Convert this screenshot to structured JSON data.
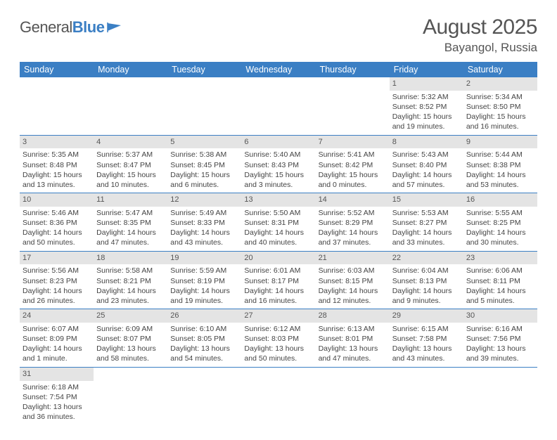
{
  "logo": {
    "general": "General",
    "blue": "Blue"
  },
  "header": {
    "month": "August 2025",
    "location": "Bayangol, Russia"
  },
  "weekdays": [
    "Sunday",
    "Monday",
    "Tuesday",
    "Wednesday",
    "Thursday",
    "Friday",
    "Saturday"
  ],
  "colors": {
    "accent": "#3b7fc4",
    "daynum_bg": "#e4e4e4",
    "text": "#444"
  },
  "first_weekday_index": 5,
  "days": [
    {
      "n": 1,
      "sunrise": "5:32 AM",
      "sunset": "8:52 PM",
      "daylight": "15 hours and 19 minutes."
    },
    {
      "n": 2,
      "sunrise": "5:34 AM",
      "sunset": "8:50 PM",
      "daylight": "15 hours and 16 minutes."
    },
    {
      "n": 3,
      "sunrise": "5:35 AM",
      "sunset": "8:48 PM",
      "daylight": "15 hours and 13 minutes."
    },
    {
      "n": 4,
      "sunrise": "5:37 AM",
      "sunset": "8:47 PM",
      "daylight": "15 hours and 10 minutes."
    },
    {
      "n": 5,
      "sunrise": "5:38 AM",
      "sunset": "8:45 PM",
      "daylight": "15 hours and 6 minutes."
    },
    {
      "n": 6,
      "sunrise": "5:40 AM",
      "sunset": "8:43 PM",
      "daylight": "15 hours and 3 minutes."
    },
    {
      "n": 7,
      "sunrise": "5:41 AM",
      "sunset": "8:42 PM",
      "daylight": "15 hours and 0 minutes."
    },
    {
      "n": 8,
      "sunrise": "5:43 AM",
      "sunset": "8:40 PM",
      "daylight": "14 hours and 57 minutes."
    },
    {
      "n": 9,
      "sunrise": "5:44 AM",
      "sunset": "8:38 PM",
      "daylight": "14 hours and 53 minutes."
    },
    {
      "n": 10,
      "sunrise": "5:46 AM",
      "sunset": "8:36 PM",
      "daylight": "14 hours and 50 minutes."
    },
    {
      "n": 11,
      "sunrise": "5:47 AM",
      "sunset": "8:35 PM",
      "daylight": "14 hours and 47 minutes."
    },
    {
      "n": 12,
      "sunrise": "5:49 AM",
      "sunset": "8:33 PM",
      "daylight": "14 hours and 43 minutes."
    },
    {
      "n": 13,
      "sunrise": "5:50 AM",
      "sunset": "8:31 PM",
      "daylight": "14 hours and 40 minutes."
    },
    {
      "n": 14,
      "sunrise": "5:52 AM",
      "sunset": "8:29 PM",
      "daylight": "14 hours and 37 minutes."
    },
    {
      "n": 15,
      "sunrise": "5:53 AM",
      "sunset": "8:27 PM",
      "daylight": "14 hours and 33 minutes."
    },
    {
      "n": 16,
      "sunrise": "5:55 AM",
      "sunset": "8:25 PM",
      "daylight": "14 hours and 30 minutes."
    },
    {
      "n": 17,
      "sunrise": "5:56 AM",
      "sunset": "8:23 PM",
      "daylight": "14 hours and 26 minutes."
    },
    {
      "n": 18,
      "sunrise": "5:58 AM",
      "sunset": "8:21 PM",
      "daylight": "14 hours and 23 minutes."
    },
    {
      "n": 19,
      "sunrise": "5:59 AM",
      "sunset": "8:19 PM",
      "daylight": "14 hours and 19 minutes."
    },
    {
      "n": 20,
      "sunrise": "6:01 AM",
      "sunset": "8:17 PM",
      "daylight": "14 hours and 16 minutes."
    },
    {
      "n": 21,
      "sunrise": "6:03 AM",
      "sunset": "8:15 PM",
      "daylight": "14 hours and 12 minutes."
    },
    {
      "n": 22,
      "sunrise": "6:04 AM",
      "sunset": "8:13 PM",
      "daylight": "14 hours and 9 minutes."
    },
    {
      "n": 23,
      "sunrise": "6:06 AM",
      "sunset": "8:11 PM",
      "daylight": "14 hours and 5 minutes."
    },
    {
      "n": 24,
      "sunrise": "6:07 AM",
      "sunset": "8:09 PM",
      "daylight": "14 hours and 1 minute."
    },
    {
      "n": 25,
      "sunrise": "6:09 AM",
      "sunset": "8:07 PM",
      "daylight": "13 hours and 58 minutes."
    },
    {
      "n": 26,
      "sunrise": "6:10 AM",
      "sunset": "8:05 PM",
      "daylight": "13 hours and 54 minutes."
    },
    {
      "n": 27,
      "sunrise": "6:12 AM",
      "sunset": "8:03 PM",
      "daylight": "13 hours and 50 minutes."
    },
    {
      "n": 28,
      "sunrise": "6:13 AM",
      "sunset": "8:01 PM",
      "daylight": "13 hours and 47 minutes."
    },
    {
      "n": 29,
      "sunrise": "6:15 AM",
      "sunset": "7:58 PM",
      "daylight": "13 hours and 43 minutes."
    },
    {
      "n": 30,
      "sunrise": "6:16 AM",
      "sunset": "7:56 PM",
      "daylight": "13 hours and 39 minutes."
    },
    {
      "n": 31,
      "sunrise": "6:18 AM",
      "sunset": "7:54 PM",
      "daylight": "13 hours and 36 minutes."
    }
  ]
}
